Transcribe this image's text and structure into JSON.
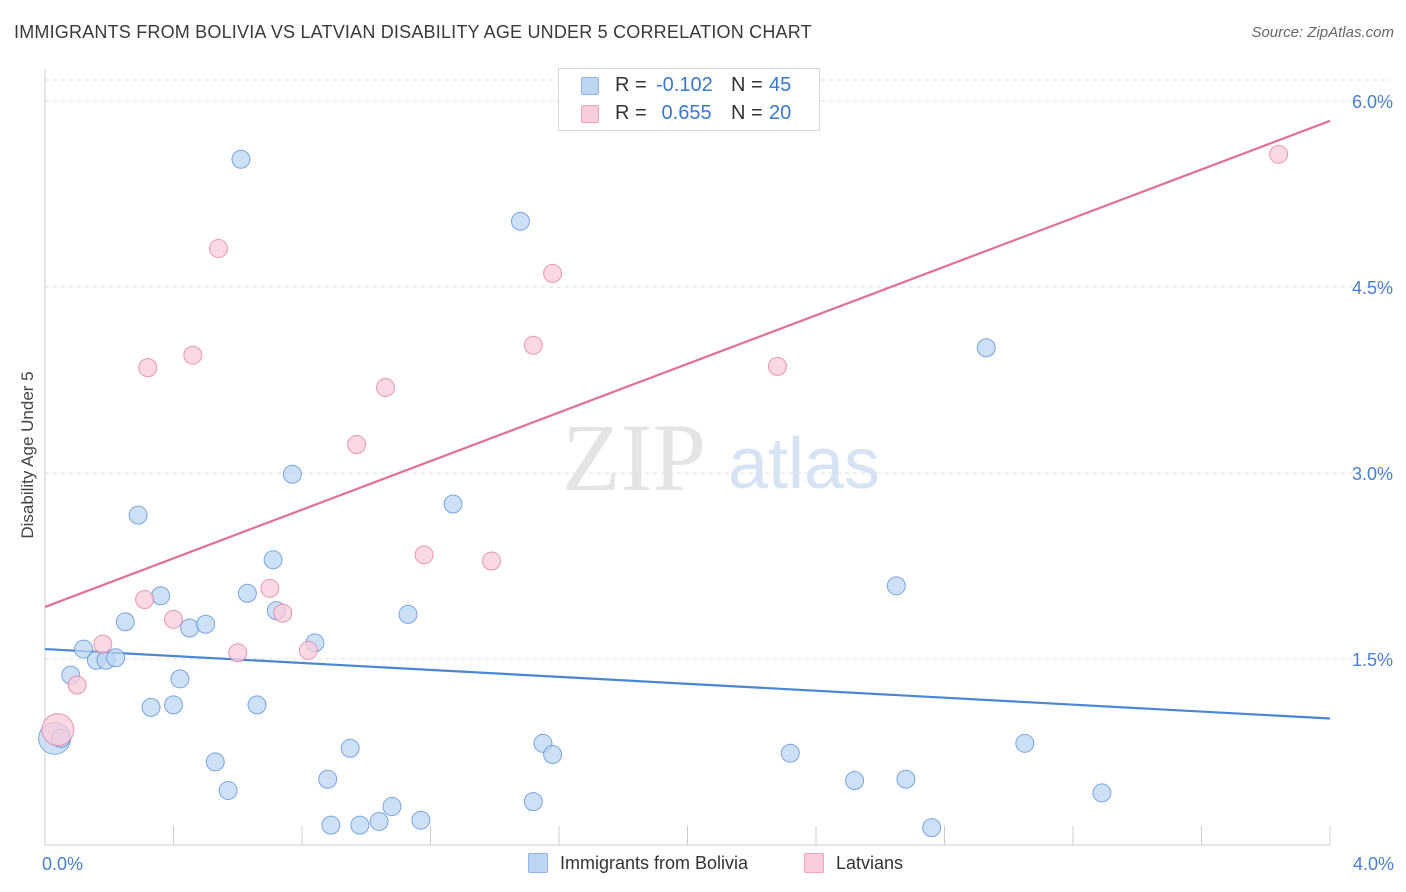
{
  "chart_data": {
    "type": "scatter",
    "title": "IMMIGRANTS FROM BOLIVIA VS LATVIAN DISABILITY AGE UNDER 5 CORRELATION CHART",
    "source": "Source: ZipAtlas.com",
    "watermark": {
      "zip": "ZIP",
      "atlas": "atlas"
    },
    "xlabel": "",
    "ylabel": "Disability Age Under 5",
    "xlim": [
      0,
      4.0
    ],
    "ylim": [
      0,
      6.25
    ],
    "x_tick_labels": [
      {
        "value": 0,
        "label": "0.0%"
      },
      {
        "value": 4.0,
        "label": "4.0%"
      }
    ],
    "y_tick_labels": [
      {
        "value": 1.5,
        "label": "1.5%"
      },
      {
        "value": 3.0,
        "label": "3.0%"
      },
      {
        "value": 4.5,
        "label": "4.5%"
      },
      {
        "value": 6.0,
        "label": "6.0%"
      }
    ],
    "grid": true,
    "legend_position": "bottom-center",
    "stats": [
      {
        "r_label": "R =",
        "r_value": "-0.102",
        "n_label": "N =",
        "n_value": "45"
      },
      {
        "r_label": "R =",
        "r_value": " 0.655",
        "n_label": "N =",
        "n_value": "20"
      }
    ],
    "series": [
      {
        "name": "Immigrants from Bolivia",
        "color": "#4a86d4",
        "fill": "#bcd5f3",
        "trend": {
          "x": [
            0,
            4.0
          ],
          "y": [
            1.58,
            1.02
          ]
        },
        "points": [
          [
            0.03,
            0.86,
            16
          ],
          [
            0.05,
            0.86,
            9
          ],
          [
            0.08,
            1.37,
            9
          ],
          [
            0.12,
            1.58,
            9
          ],
          [
            0.16,
            1.49,
            9
          ],
          [
            0.19,
            1.49,
            9
          ],
          [
            0.22,
            1.51,
            9
          ],
          [
            0.25,
            1.8,
            9
          ],
          [
            0.29,
            2.66,
            9
          ],
          [
            0.33,
            1.11,
            9
          ],
          [
            0.36,
            2.01,
            9
          ],
          [
            0.4,
            1.13,
            9
          ],
          [
            0.42,
            1.34,
            9
          ],
          [
            0.45,
            1.75,
            9
          ],
          [
            0.5,
            1.78,
            9
          ],
          [
            0.53,
            0.67,
            9
          ],
          [
            0.57,
            0.44,
            9
          ],
          [
            0.61,
            5.53,
            9
          ],
          [
            0.63,
            2.03,
            9
          ],
          [
            0.66,
            1.13,
            9
          ],
          [
            0.71,
            2.3,
            9
          ],
          [
            0.72,
            1.89,
            9
          ],
          [
            0.77,
            2.99,
            9
          ],
          [
            0.84,
            1.63,
            9
          ],
          [
            0.88,
            0.53,
            9
          ],
          [
            0.89,
            0.16,
            9
          ],
          [
            0.95,
            0.78,
            9
          ],
          [
            0.98,
            0.16,
            9
          ],
          [
            1.04,
            0.19,
            9
          ],
          [
            1.08,
            0.31,
            9
          ],
          [
            1.13,
            1.86,
            9
          ],
          [
            1.17,
            0.2,
            9
          ],
          [
            1.27,
            2.75,
            9
          ],
          [
            1.48,
            5.03,
            9
          ],
          [
            1.52,
            0.35,
            9
          ],
          [
            1.55,
            0.82,
            9
          ],
          [
            1.58,
            0.73,
            9
          ],
          [
            2.32,
            0.74,
            9
          ],
          [
            2.52,
            0.52,
            9
          ],
          [
            2.65,
            2.09,
            9
          ],
          [
            2.68,
            0.53,
            9
          ],
          [
            2.76,
            0.14,
            9
          ],
          [
            2.93,
            4.01,
            9
          ],
          [
            3.05,
            0.82,
            9
          ],
          [
            3.29,
            0.42,
            9
          ]
        ]
      },
      {
        "name": "Latvians",
        "color": "#e07096",
        "fill": "#f9ccd9",
        "trend": {
          "x": [
            0,
            4.0
          ],
          "y": [
            1.92,
            5.84
          ]
        },
        "points": [
          [
            0.04,
            0.93,
            16
          ],
          [
            0.1,
            1.29,
            9
          ],
          [
            0.18,
            1.62,
            9
          ],
          [
            0.32,
            3.85,
            9
          ],
          [
            0.31,
            1.98,
            9
          ],
          [
            0.4,
            1.82,
            9
          ],
          [
            0.46,
            3.95,
            9
          ],
          [
            0.54,
            4.81,
            9
          ],
          [
            0.6,
            1.55,
            9
          ],
          [
            0.7,
            2.07,
            9
          ],
          [
            0.74,
            1.87,
            9
          ],
          [
            0.82,
            1.57,
            9
          ],
          [
            0.97,
            3.23,
            9
          ],
          [
            1.06,
            3.69,
            9
          ],
          [
            1.18,
            2.34,
            9
          ],
          [
            1.39,
            2.29,
            9
          ],
          [
            1.52,
            4.03,
            9
          ],
          [
            1.58,
            4.61,
            9
          ],
          [
            2.28,
            3.86,
            9
          ],
          [
            3.84,
            5.57,
            9
          ]
        ]
      }
    ]
  }
}
